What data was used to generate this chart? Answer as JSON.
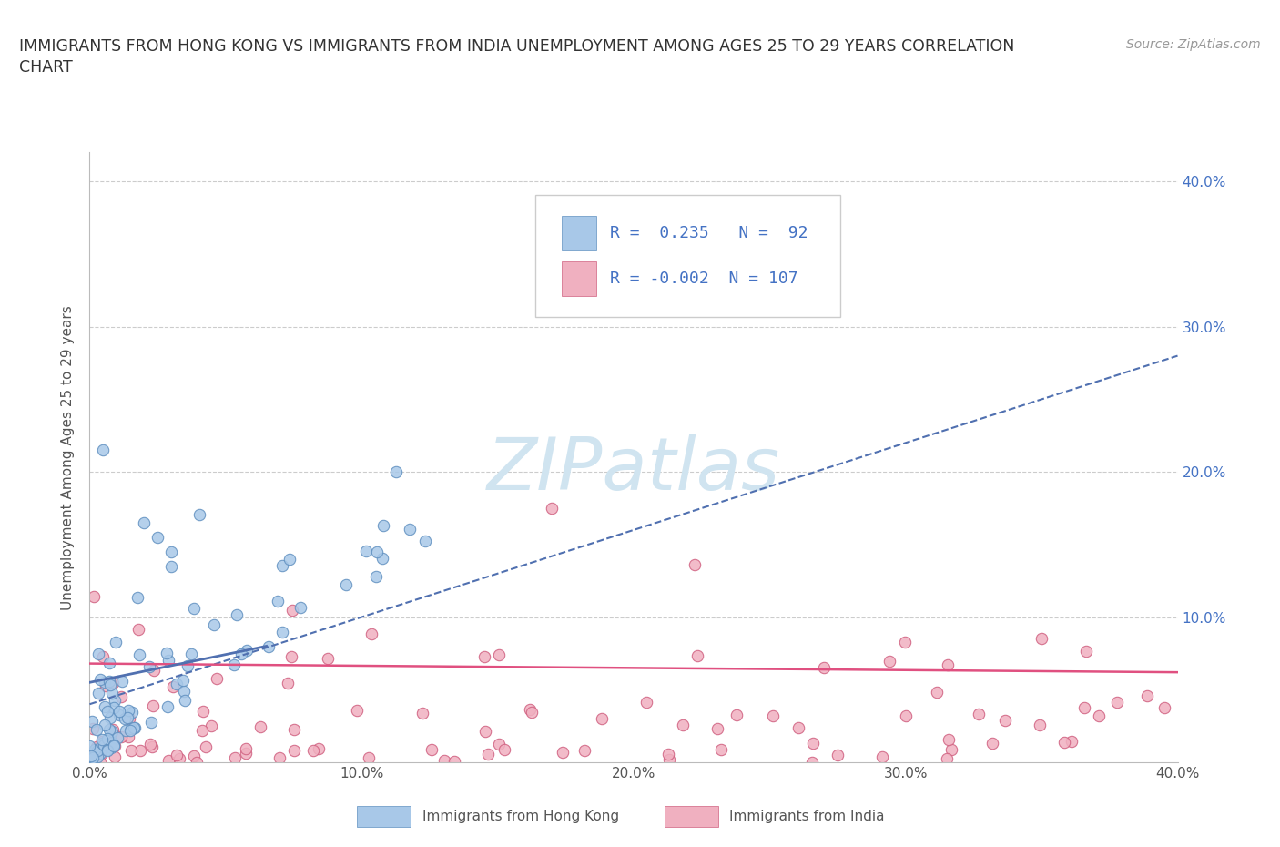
{
  "title_line1": "IMMIGRANTS FROM HONG KONG VS IMMIGRANTS FROM INDIA UNEMPLOYMENT AMONG AGES 25 TO 29 YEARS CORRELATION",
  "title_line2": "CHART",
  "source_text": "Source: ZipAtlas.com",
  "ylabel": "Unemployment Among Ages 25 to 29 years",
  "hk_R": 0.235,
  "hk_N": 92,
  "india_R": -0.002,
  "india_N": 107,
  "hk_color": "#a8c8e8",
  "india_color": "#f0b0c0",
  "hk_edge_color": "#6090c0",
  "india_edge_color": "#d06080",
  "hk_trend_color": "#5070b0",
  "india_trend_color": "#e05080",
  "watermark_color": "#d0e4f0",
  "xlim": [
    0.0,
    0.4
  ],
  "ylim": [
    0.0,
    0.42
  ],
  "x_ticks": [
    0.0,
    0.1,
    0.2,
    0.3,
    0.4
  ],
  "y_ticks": [
    0.1,
    0.2,
    0.3,
    0.4
  ],
  "x_tick_labels": [
    "0.0%",
    "10.0%",
    "20.0%",
    "30.0%",
    "40.0%"
  ],
  "y_tick_labels": [
    "10.0%",
    "20.0%",
    "30.0%",
    "40.0%"
  ],
  "legend_label_hk": "Immigrants from Hong Kong",
  "legend_label_india": "Immigrants from India",
  "background_color": "#ffffff",
  "grid_color": "#cccccc"
}
